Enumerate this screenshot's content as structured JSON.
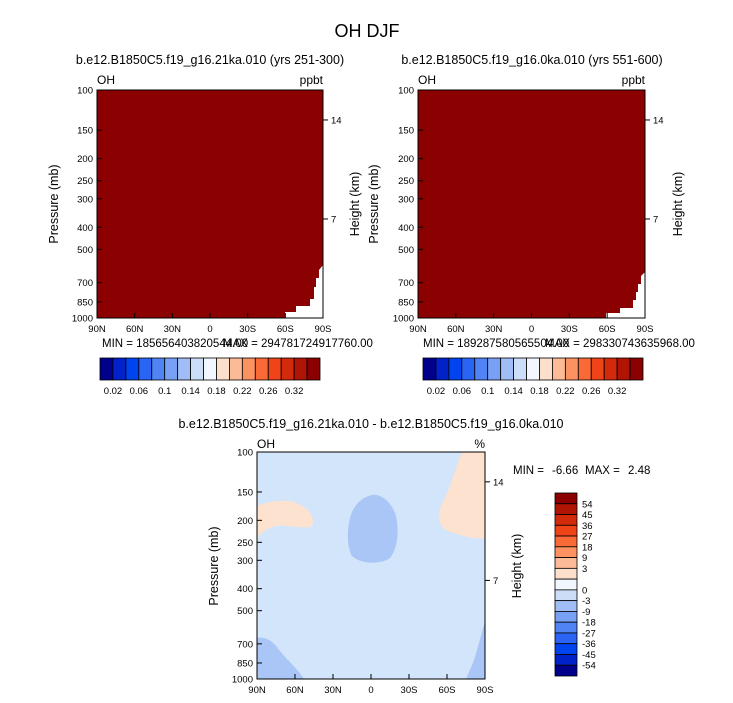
{
  "figure": {
    "title": "OH DJF"
  },
  "colors": {
    "dark_red": "#8B0000",
    "panel3_base": "#D3E5FA",
    "panel3_blue": "#A9C6F7",
    "panel3_peach": "#FDE2CF"
  },
  "chart_data": [
    {
      "type": "heatmap",
      "title": "b.e12.B1850C5.f19_g16.21ka.010 (yrs 251-300)",
      "left_label": "OH",
      "right_label": "ppbt",
      "xlabel": "",
      "ylabel": "Pressure (mb)",
      "y2label": "Height (km)",
      "x_ticks": [
        "90N",
        "60N",
        "30N",
        "0",
        "30S",
        "60S",
        "90S"
      ],
      "x_values": [
        90,
        60,
        30,
        0,
        -30,
        -60,
        -90
      ],
      "y_ticks": [
        100,
        150,
        200,
        250,
        300,
        400,
        500,
        700,
        850,
        1000
      ],
      "y_range": [
        100,
        1000
      ],
      "y2_ticks": [
        7,
        14
      ],
      "min_text": "MIN = 185656403820544.00",
      "max_text": "MAX = 294781724917760.00",
      "colorbar": {
        "orientation": "horizontal",
        "labels": [
          "0.02",
          "0.06",
          "0.1",
          "0.14",
          "0.18",
          "0.22",
          "0.26",
          "0.32"
        ],
        "colors": [
          "#00008B",
          "#0022C8",
          "#0044F0",
          "#2A64F5",
          "#5084F5",
          "#78A0F5",
          "#A0BEF5",
          "#CCDDF8",
          "#F2F6FF",
          "#FDE0CC",
          "#FDBA96",
          "#FC9260",
          "#FA6A36",
          "#EE4418",
          "#D22A0A",
          "#B01402",
          "#8B0000"
        ]
      }
    },
    {
      "type": "heatmap",
      "title": "b.e12.B1850C5.f19_g16.0ka.010 (yrs 551-600)",
      "left_label": "OH",
      "right_label": "ppbt",
      "xlabel": "",
      "ylabel": "Pressure (mb)",
      "y2label": "Height (km)",
      "x_ticks": [
        "90N",
        "60N",
        "30N",
        "0",
        "30S",
        "60S",
        "90S"
      ],
      "x_values": [
        90,
        60,
        30,
        0,
        -30,
        -60,
        -90
      ],
      "y_ticks": [
        100,
        150,
        200,
        250,
        300,
        400,
        500,
        700,
        850,
        1000
      ],
      "y_range": [
        100,
        1000
      ],
      "y2_ticks": [
        7,
        14
      ],
      "min_text": "MIN = 189287580565504.00",
      "max_text": "MAX = 298330743635968.00",
      "colorbar": {
        "orientation": "horizontal",
        "labels": [
          "0.02",
          "0.06",
          "0.1",
          "0.14",
          "0.18",
          "0.22",
          "0.26",
          "0.32"
        ],
        "colors": [
          "#00008B",
          "#0022C8",
          "#0044F0",
          "#2A64F5",
          "#5084F5",
          "#78A0F5",
          "#A0BEF5",
          "#CCDDF8",
          "#F2F6FF",
          "#FDE0CC",
          "#FDBA96",
          "#FC9260",
          "#FA6A36",
          "#EE4418",
          "#D22A0A",
          "#B01402",
          "#8B0000"
        ]
      }
    },
    {
      "type": "heatmap",
      "title": "b.e12.B1850C5.f19_g16.21ka.010 - b.e12.B1850C5.f19_g16.0ka.010",
      "left_label": "OH",
      "right_label": "%",
      "xlabel": "",
      "ylabel": "Pressure (mb)",
      "y2label": "Height (km)",
      "x_ticks": [
        "90N",
        "60N",
        "30N",
        "0",
        "30S",
        "60S",
        "90S"
      ],
      "x_values": [
        90,
        60,
        30,
        0,
        -30,
        -60,
        -90
      ],
      "y_ticks": [
        100,
        150,
        200,
        250,
        300,
        400,
        500,
        700,
        850,
        1000
      ],
      "y_range": [
        100,
        1000
      ],
      "y2_ticks": [
        7,
        14
      ],
      "min_label": "MIN =",
      "min_value": "-6.66",
      "max_label": "MAX =",
      "max_value": "2.48",
      "colorbar": {
        "orientation": "vertical",
        "labels": [
          "54",
          "45",
          "36",
          "27",
          "18",
          "9",
          "3",
          "0",
          "-3",
          "-9",
          "-18",
          "-27",
          "-36",
          "-45",
          "-54"
        ],
        "colors": [
          "#8B0000",
          "#B01402",
          "#D22A0A",
          "#EE4418",
          "#FA6A36",
          "#FC9260",
          "#FDBA96",
          "#FDE0CC",
          "#F2F6FF",
          "#CCDDF8",
          "#A0BEF5",
          "#78A0F5",
          "#5084F5",
          "#2A64F5",
          "#0044F0",
          "#0022C8",
          "#00008B"
        ]
      }
    }
  ]
}
